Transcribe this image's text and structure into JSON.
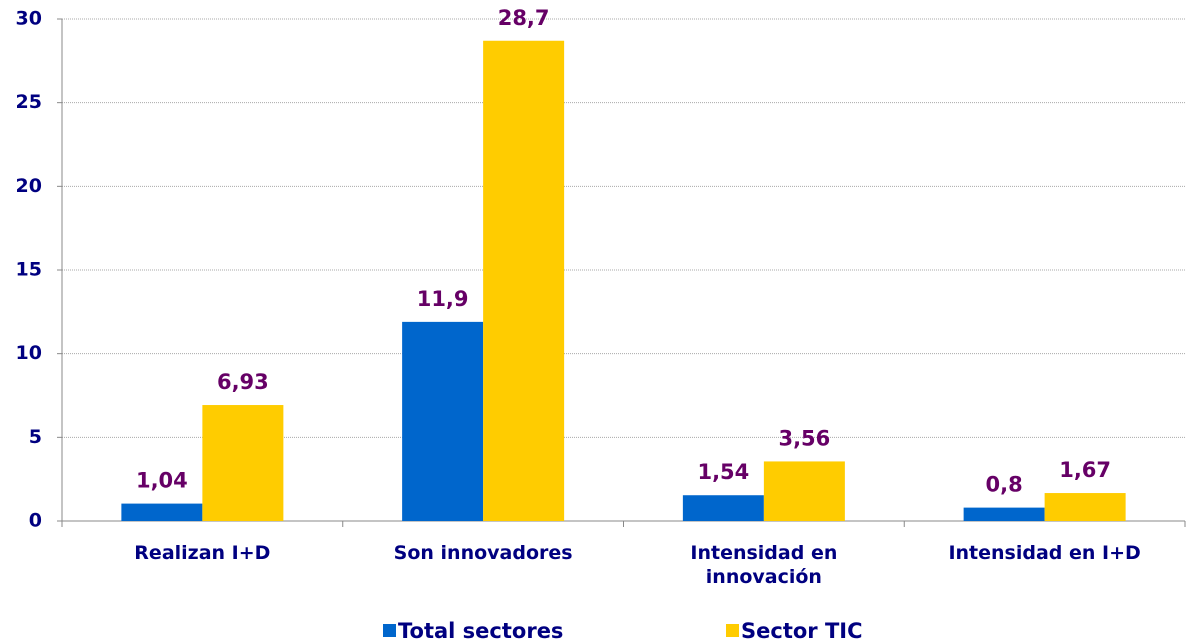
{
  "chart_data": {
    "type": "bar",
    "categories": [
      "Realizan I+D",
      "Son innovadores",
      "Intensidad en innovación",
      "Intensidad en I+D"
    ],
    "series": [
      {
        "name": "Total sectores",
        "color": "#0066cc",
        "values": [
          1.04,
          11.9,
          1.54,
          0.8
        ],
        "value_labels": [
          "1,04",
          "11,9",
          "1,54",
          "0,8"
        ]
      },
      {
        "name": "Sector TIC",
        "color": "#ffcc00",
        "values": [
          6.93,
          28.7,
          3.56,
          1.67
        ],
        "value_labels": [
          "6,93",
          "28,7",
          "3,56",
          "1,67"
        ]
      }
    ],
    "ylim": [
      0,
      30
    ],
    "yticks": [
      0,
      5,
      10,
      15,
      20,
      25,
      30
    ],
    "grid": true,
    "legend": "bottom"
  }
}
